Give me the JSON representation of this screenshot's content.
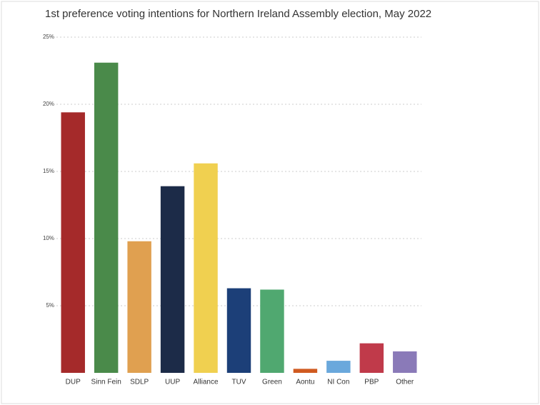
{
  "chart_data": {
    "type": "bar",
    "title": "1st preference voting intentions for Northern Ireland Assembly election, May 2022",
    "categories": [
      "DUP",
      "Sinn Fein",
      "SDLP",
      "UUP",
      "Alliance",
      "TUV",
      "Green",
      "Aontu",
      "NI Con",
      "PBP",
      "Other"
    ],
    "values": [
      19.4,
      23.1,
      9.8,
      13.9,
      15.6,
      6.3,
      6.2,
      0.3,
      0.9,
      2.2,
      1.6
    ],
    "colors": [
      "#a52a2a",
      "#4a8a4a",
      "#e0a050",
      "#1c2b48",
      "#f0d050",
      "#1c3f78",
      "#50a870",
      "#d05a20",
      "#6aa8dc",
      "#c03a4a",
      "#8a7ab8"
    ],
    "ylim": [
      0,
      25
    ],
    "yticks": [
      {
        "value": 5,
        "label": "5%"
      },
      {
        "value": 10,
        "label": "10%"
      },
      {
        "value": 15,
        "label": "15%"
      },
      {
        "value": 20,
        "label": "20%"
      },
      {
        "value": 25,
        "label": "25%"
      }
    ],
    "grid": true
  }
}
